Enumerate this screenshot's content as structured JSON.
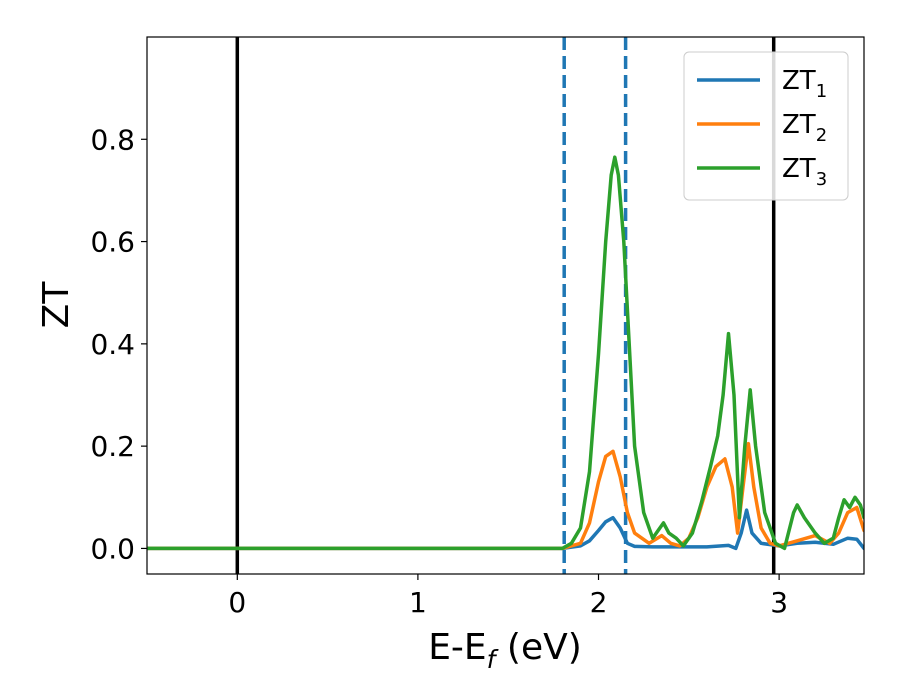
{
  "chart_data": {
    "type": "line",
    "xlabel": "E-E",
    "xlabel_sub": "f",
    "xlabel_unit": " (eV)",
    "ylabel": "ZT",
    "xlim": [
      -0.5,
      3.47
    ],
    "ylim": [
      -0.05,
      1.0
    ],
    "x_ticks": [
      0,
      1,
      2,
      3
    ],
    "y_ticks": [
      0.0,
      0.2,
      0.4,
      0.6,
      0.8
    ],
    "x_tick_labels": [
      "0",
      "1",
      "2",
      "3"
    ],
    "y_tick_labels": [
      "0.0",
      "0.2",
      "0.4",
      "0.6",
      "0.8"
    ],
    "grid": false,
    "legend_position": "top-right",
    "vertical_lines": [
      {
        "x": 0.0,
        "style": "solid",
        "color": "#000000"
      },
      {
        "x": 1.81,
        "style": "dashed",
        "color": "#1f77b4"
      },
      {
        "x": 2.15,
        "style": "dashed",
        "color": "#1f77b4"
      },
      {
        "x": 2.97,
        "style": "solid",
        "color": "#000000"
      }
    ],
    "series": [
      {
        "name": "ZT",
        "name_sub": "1",
        "color": "#1f77b4",
        "x": [
          -0.5,
          1.8,
          1.9,
          1.95,
          2.0,
          2.04,
          2.08,
          2.12,
          2.16,
          2.2,
          2.3,
          2.4,
          2.5,
          2.6,
          2.72,
          2.76,
          2.79,
          2.82,
          2.85,
          2.9,
          3.0,
          3.1,
          3.2,
          3.3,
          3.38,
          3.43,
          3.47
        ],
        "y": [
          0.0,
          0.0,
          0.005,
          0.015,
          0.035,
          0.052,
          0.06,
          0.04,
          0.01,
          0.004,
          0.003,
          0.003,
          0.003,
          0.003,
          0.006,
          0.0,
          0.03,
          0.075,
          0.03,
          0.01,
          0.005,
          0.01,
          0.012,
          0.008,
          0.02,
          0.018,
          0.0
        ]
      },
      {
        "name": "ZT",
        "name_sub": "2",
        "color": "#ff7f0e",
        "x": [
          -0.5,
          1.8,
          1.9,
          1.95,
          2.0,
          2.04,
          2.08,
          2.12,
          2.16,
          2.2,
          2.28,
          2.35,
          2.4,
          2.45,
          2.5,
          2.55,
          2.6,
          2.65,
          2.7,
          2.74,
          2.77,
          2.8,
          2.83,
          2.86,
          2.9,
          2.95,
          3.0,
          3.1,
          3.2,
          3.28,
          3.33,
          3.38,
          3.43,
          3.47
        ],
        "y": [
          0.0,
          0.0,
          0.01,
          0.05,
          0.13,
          0.18,
          0.19,
          0.14,
          0.07,
          0.03,
          0.01,
          0.025,
          0.01,
          0.005,
          0.02,
          0.06,
          0.12,
          0.16,
          0.175,
          0.12,
          0.03,
          0.12,
          0.205,
          0.12,
          0.04,
          0.01,
          0.005,
          0.015,
          0.025,
          0.01,
          0.03,
          0.07,
          0.08,
          0.035
        ]
      },
      {
        "name": "ZT",
        "name_sub": "3",
        "color": "#2ca02c",
        "x": [
          -0.5,
          1.8,
          1.85,
          1.9,
          1.95,
          2.0,
          2.04,
          2.07,
          2.09,
          2.11,
          2.14,
          2.17,
          2.2,
          2.25,
          2.3,
          2.33,
          2.36,
          2.39,
          2.43,
          2.47,
          2.52,
          2.57,
          2.62,
          2.66,
          2.69,
          2.72,
          2.75,
          2.78,
          2.81,
          2.84,
          2.87,
          2.92,
          2.98,
          3.03,
          3.08,
          3.1,
          3.14,
          3.2,
          3.25,
          3.3,
          3.33,
          3.36,
          3.39,
          3.42,
          3.45,
          3.47
        ],
        "y": [
          0.0,
          0.0,
          0.01,
          0.04,
          0.15,
          0.38,
          0.6,
          0.73,
          0.765,
          0.73,
          0.6,
          0.4,
          0.2,
          0.07,
          0.02,
          0.035,
          0.05,
          0.03,
          0.02,
          0.005,
          0.03,
          0.09,
          0.16,
          0.22,
          0.3,
          0.42,
          0.3,
          0.06,
          0.2,
          0.31,
          0.2,
          0.07,
          0.01,
          0.0,
          0.07,
          0.085,
          0.06,
          0.03,
          0.01,
          0.02,
          0.06,
          0.095,
          0.08,
          0.1,
          0.085,
          0.06
        ]
      }
    ]
  }
}
